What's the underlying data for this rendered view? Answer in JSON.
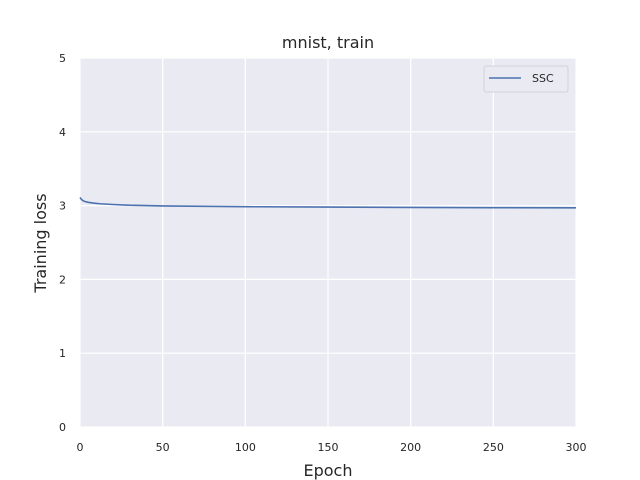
{
  "chart_data": {
    "type": "line",
    "title": "mnist, train",
    "xlabel": "Epoch",
    "ylabel": "Training loss",
    "xlim": [
      0,
      300
    ],
    "ylim": [
      0,
      5
    ],
    "xticks": [
      "0",
      "50",
      "100",
      "150",
      "200",
      "250",
      "300"
    ],
    "yticks": [
      "0",
      "1",
      "2",
      "3",
      "4",
      "5"
    ],
    "grid": true,
    "legend_position": "top-right",
    "background_color": "#EAEAF2",
    "series": [
      {
        "name": "SSC",
        "color": "#4C72B0",
        "x": [
          0,
          1,
          2,
          3,
          5,
          8,
          12,
          20,
          30,
          50,
          75,
          100,
          150,
          200,
          250,
          300
        ],
        "y": [
          3.11,
          3.08,
          3.065,
          3.055,
          3.045,
          3.035,
          3.025,
          3.015,
          3.005,
          2.995,
          2.99,
          2.985,
          2.98,
          2.975,
          2.972,
          2.97
        ]
      }
    ]
  }
}
